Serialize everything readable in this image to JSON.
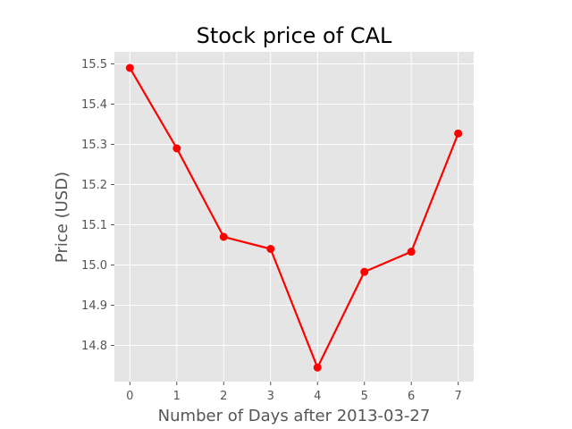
{
  "chart_data": {
    "type": "line",
    "title": "Stock price of CAL",
    "xlabel": "Number of Days after 2013-03-27",
    "ylabel": "Price (USD)",
    "x": [
      0,
      1,
      2,
      3,
      4,
      5,
      6,
      7
    ],
    "xticks": [
      0,
      1,
      2,
      3,
      4,
      5,
      6,
      7
    ],
    "yticks": [
      14.8,
      14.9,
      15.0,
      15.1,
      15.2,
      15.3,
      15.4,
      15.5
    ],
    "ytick_labels": [
      "14.8",
      "14.9",
      "15.0",
      "15.1",
      "15.2",
      "15.3",
      "15.4",
      "15.5"
    ],
    "xlim": [
      -0.33,
      7.33
    ],
    "ylim": [
      14.71,
      15.53
    ],
    "grid": true,
    "style": "ggplot",
    "series": [
      {
        "values": [
          15.49,
          15.29,
          15.07,
          15.04,
          14.745,
          14.983,
          15.033,
          15.327
        ],
        "color": "#ff0000",
        "marker": "circle"
      }
    ],
    "colors": {
      "plot_background": "#e5e5e5",
      "grid": "#ffffff",
      "line": "#ff0000",
      "tick_label": "#555555",
      "title": "#000000"
    }
  }
}
